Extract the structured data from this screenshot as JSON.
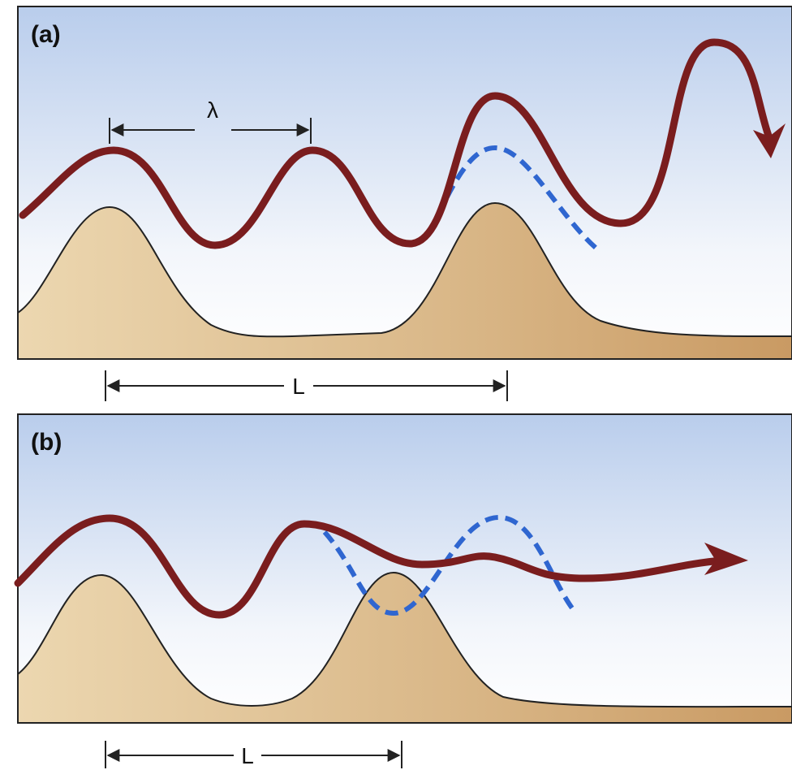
{
  "panels": [
    {
      "label": "(a)",
      "wavelength_label": "λ",
      "spacing_label": "L"
    },
    {
      "label": "(b)",
      "spacing_label": "L"
    }
  ]
}
